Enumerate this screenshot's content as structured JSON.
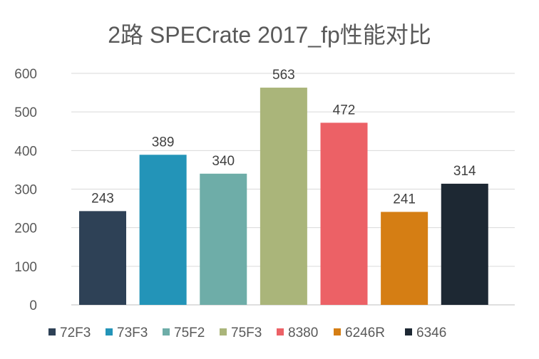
{
  "chart_data": {
    "type": "bar",
    "title": "2路 SPECrate 2017_fp性能对比",
    "xlabel": "",
    "ylabel": "",
    "ylim": [
      0,
      600
    ],
    "yticks": [
      0,
      100,
      200,
      300,
      400,
      500,
      600
    ],
    "grid": true,
    "legend_position": "bottom",
    "series": [
      {
        "name": "72F3",
        "value": 243,
        "color": "#2e4156"
      },
      {
        "name": "73F3",
        "value": 389,
        "color": "#2394b8"
      },
      {
        "name": "75F2",
        "value": 340,
        "color": "#6eada8"
      },
      {
        "name": "75F3",
        "value": 563,
        "color": "#aab57a"
      },
      {
        "name": "8380",
        "value": 472,
        "color": "#ec6166"
      },
      {
        "name": "6246R",
        "value": 241,
        "color": "#d57e14"
      },
      {
        "name": "6346",
        "value": 314,
        "color": "#1d2833"
      }
    ]
  }
}
